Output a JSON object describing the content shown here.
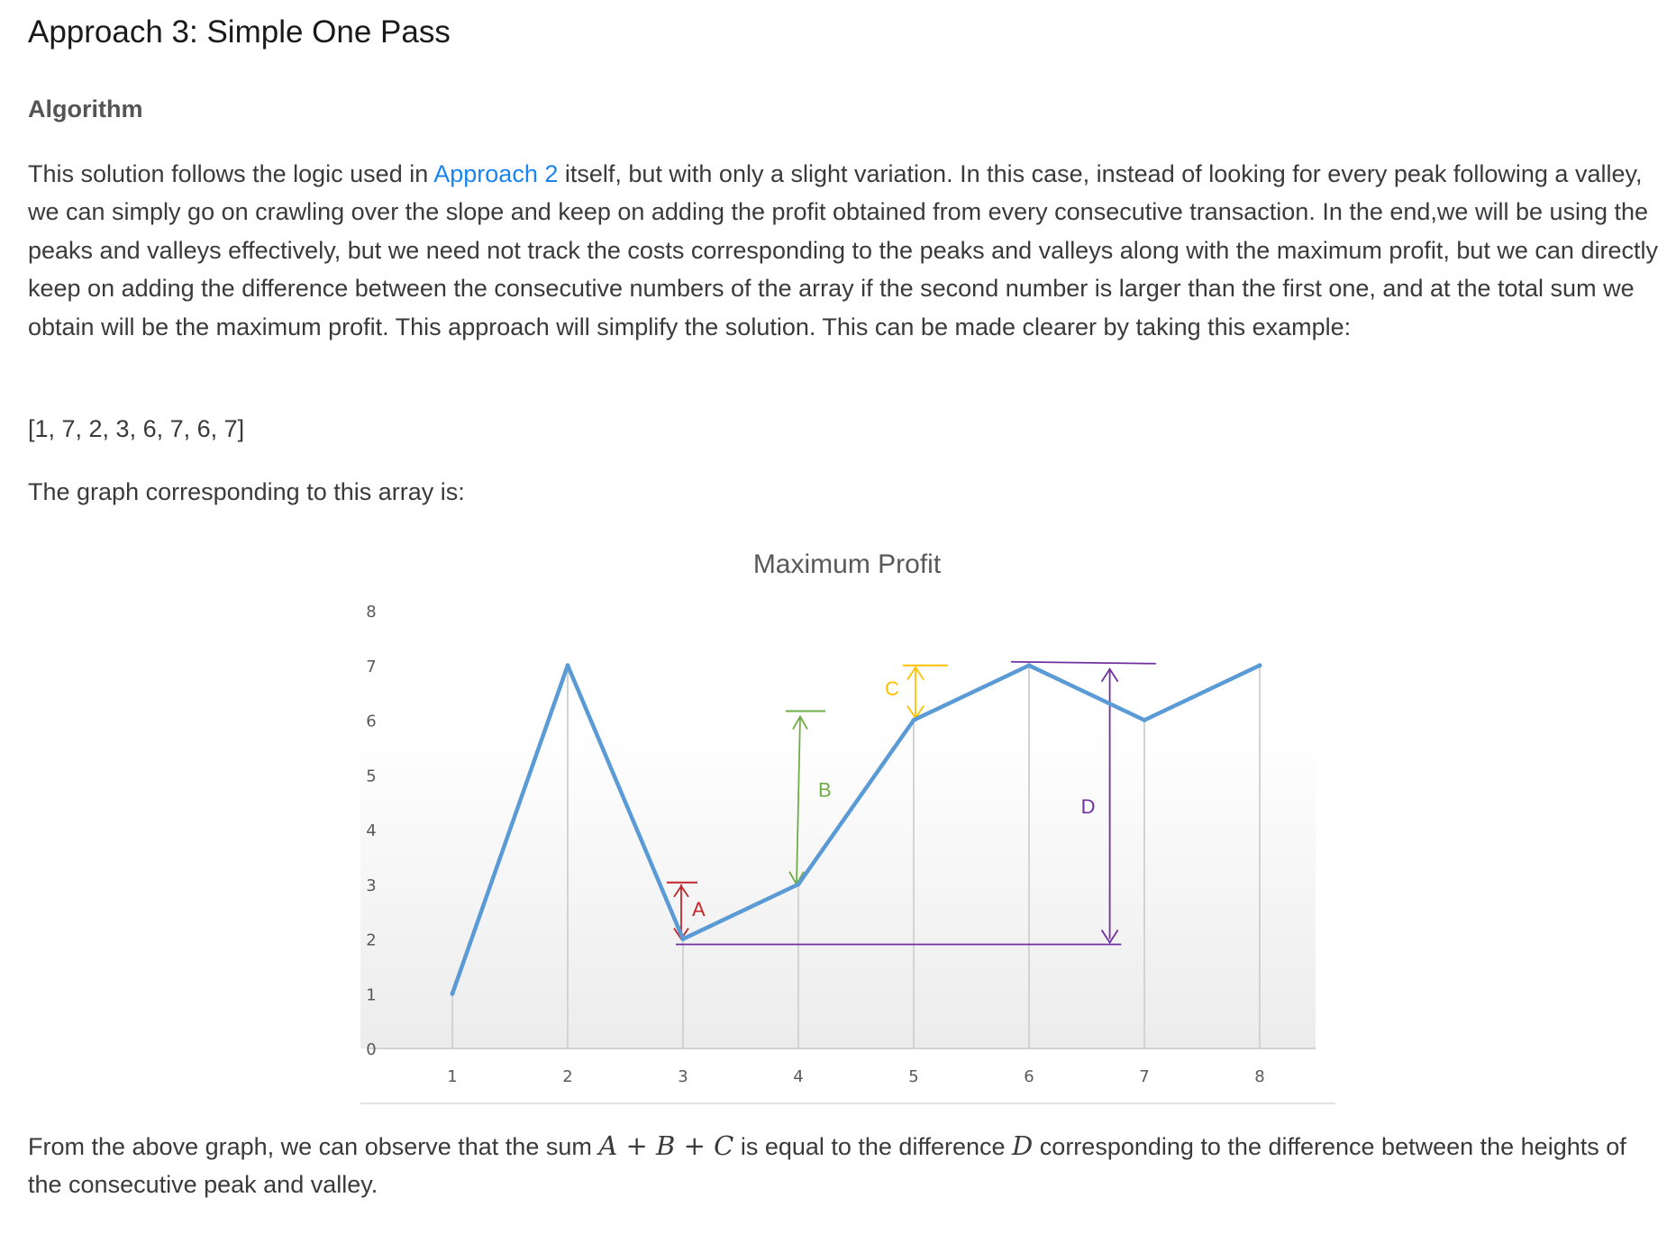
{
  "heading": "Approach 3: Simple One Pass",
  "section": "Algorithm",
  "intro": {
    "before_link": "This solution follows the logic used in ",
    "link": "Approach 2",
    "after_link": " itself, but with only a slight variation. In this case, instead of looking for every peak following a valley, we can simply go on crawling over the slope and keep on adding the profit obtained from every consecutive transaction. In the end,we will be using the peaks and valleys effectively, but we need not track the costs corresponding to the peaks and valleys along with the maximum profit, but we can directly keep on adding the difference between the consecutive numbers of the array if the second number is larger than the first one, and at the total sum we obtain will be the maximum profit. This approach will simplify the solution. This can be made clearer by taking this example:"
  },
  "example_array": "[1, 7, 2, 3, 6, 7, 6, 7]",
  "graph_intro": "The graph corresponding to this array is:",
  "conclusion": {
    "part1": "From the above graph, we can observe that the sum ",
    "math1": {
      "a": "A",
      "plus1": "+",
      "b": "B",
      "plus2": "+",
      "c": "C"
    },
    "part2": " is equal to the difference ",
    "math2": "D",
    "part3": " corresponding to the difference between the heights of the consecutive peak and valley."
  },
  "chart_data": {
    "type": "line",
    "title": "Maximum Profit",
    "x": [
      1,
      2,
      3,
      4,
      5,
      6,
      7,
      8
    ],
    "y": [
      1,
      7,
      2,
      3,
      6,
      7,
      6,
      7
    ],
    "xlim": [
      1,
      8
    ],
    "ylim": [
      0,
      8
    ],
    "y_ticks": [
      0,
      1,
      2,
      3,
      4,
      5,
      6,
      7,
      8
    ],
    "x_ticks": [
      1,
      2,
      3,
      4,
      5,
      6,
      7,
      8
    ],
    "grid": "vertical",
    "line_color": "#5b9bd5",
    "annotations": [
      {
        "label": "A",
        "color": "#c0272d",
        "x": 3,
        "from": 2,
        "to": 3
      },
      {
        "label": "B",
        "color": "#70ad47",
        "x": 4,
        "from": 3,
        "to": 6
      },
      {
        "label": "C",
        "color": "#ffc000",
        "x": 5,
        "from": 6,
        "to": 7
      },
      {
        "label": "D",
        "color": "#7030a0",
        "x": 6.7,
        "from": 2,
        "to": 7
      }
    ]
  }
}
